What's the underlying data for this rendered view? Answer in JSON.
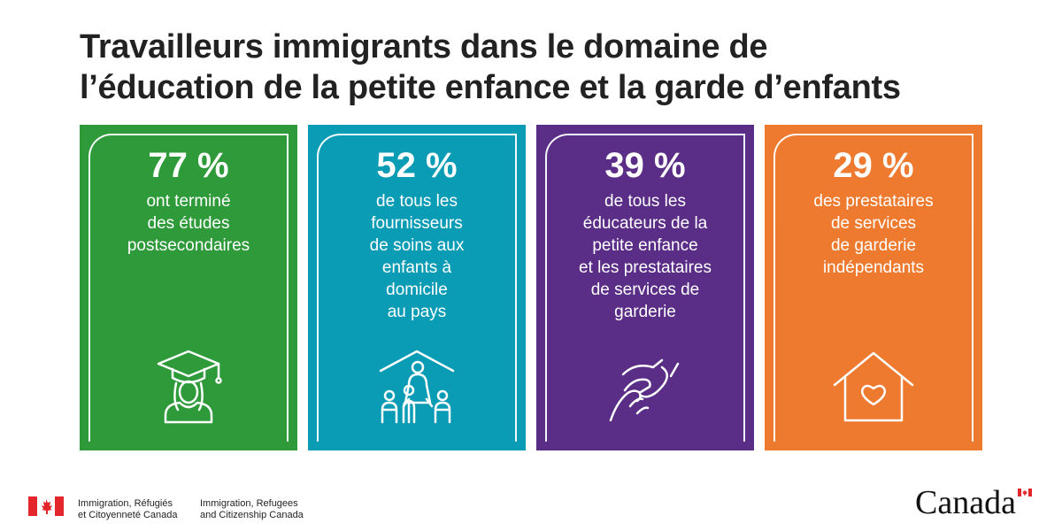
{
  "title": {
    "line1": "Travailleurs immigrants dans le domaine de",
    "line2": "l’éducation de la petite enfance et la garde d’enfants"
  },
  "cards": [
    {
      "color": "#2e9a3a",
      "percent": "77 %",
      "lines": [
        "ont terminé",
        "des études",
        "postsecondaires"
      ],
      "icon": "graduate-icon"
    },
    {
      "color": "#0a9bb5",
      "percent": "52 %",
      "lines": [
        "de tous les",
        "fournisseurs",
        "de soins aux",
        "enfants à",
        "domicile",
        "au pays"
      ],
      "icon": "family-home-icon"
    },
    {
      "color": "#5a2d86",
      "percent": "39 %",
      "lines": [
        "de tous les",
        "éducateurs de la",
        "petite enfance",
        "et les prestataires",
        "de services de",
        "garderie"
      ],
      "icon": "holding-hands-icon"
    },
    {
      "color": "#ee7a2f",
      "percent": "29 %",
      "lines": [
        "des prestataires",
        "de services",
        "de garderie",
        "indépendants"
      ],
      "icon": "house-heart-icon"
    }
  ],
  "footer": {
    "fr_line1": "Immigration, Réfugiés",
    "fr_line2": "et Citoyenneté Canada",
    "en_line1": "Immigration, Refugees",
    "en_line2": "and Citizenship Canada",
    "wordmark": "Canada",
    "flag_red": "#e3262b"
  }
}
